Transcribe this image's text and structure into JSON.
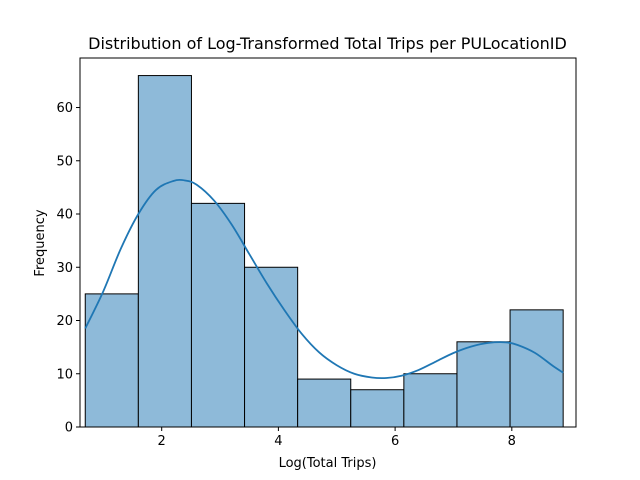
{
  "chart_data": {
    "type": "bar",
    "title": "Distribution of Log-Transformed Total Trips per PULocationID",
    "xlabel": "Log(Total Trips)",
    "ylabel": "Frequency",
    "xlim": [
      0.6,
      9.1
    ],
    "ylim": [
      0,
      69.3
    ],
    "xticks": [
      2,
      4,
      6,
      8
    ],
    "yticks": [
      0,
      10,
      20,
      30,
      40,
      50,
      60
    ],
    "bins": [
      {
        "x0": 0.69,
        "x1": 1.6,
        "count": 25
      },
      {
        "x0": 1.6,
        "x1": 2.51,
        "count": 66
      },
      {
        "x0": 2.51,
        "x1": 3.42,
        "count": 42
      },
      {
        "x0": 3.42,
        "x1": 4.33,
        "count": 30
      },
      {
        "x0": 4.33,
        "x1": 5.24,
        "count": 9
      },
      {
        "x0": 5.24,
        "x1": 6.15,
        "count": 7
      },
      {
        "x0": 6.15,
        "x1": 7.06,
        "count": 10
      },
      {
        "x0": 7.06,
        "x1": 7.97,
        "count": 16
      },
      {
        "x0": 7.97,
        "x1": 8.88,
        "count": 22
      }
    ],
    "kde": {
      "x": [
        0.69,
        1.0,
        1.3,
        1.6,
        1.9,
        2.2,
        2.4,
        2.6,
        2.9,
        3.2,
        3.5,
        3.8,
        4.1,
        4.4,
        4.7,
        5.0,
        5.3,
        5.6,
        5.85,
        6.1,
        6.4,
        6.7,
        7.0,
        7.3,
        7.6,
        7.9,
        8.1,
        8.4,
        8.7,
        8.88
      ],
      "y": [
        18.5,
        25.5,
        33.5,
        40.0,
        44.5,
        46.2,
        46.3,
        45.5,
        42.5,
        38.0,
        32.5,
        27.0,
        22.0,
        17.5,
        14.0,
        11.6,
        10.0,
        9.3,
        9.2,
        9.6,
        10.7,
        12.3,
        13.9,
        15.1,
        15.8,
        15.9,
        15.4,
        13.9,
        11.5,
        10.2
      ]
    },
    "bar_color": "#8ebad9",
    "bar_edge_color": "#000000",
    "kde_color": "#1f77b4",
    "grid": false,
    "legend": "none"
  }
}
